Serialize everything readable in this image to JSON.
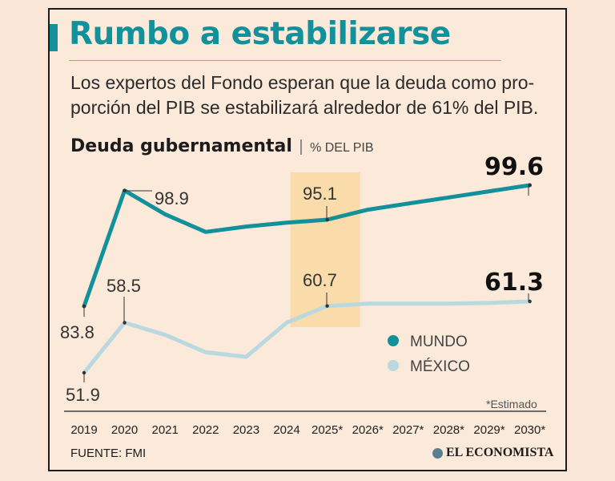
{
  "header": {
    "title": "Rumbo a estabilizarse",
    "subtitle_line1": "Los expertos del Fondo esperan que la deuda como pro-",
    "subtitle_line2": "porción del PIB se estabilizará alrededor de 61% del PIB."
  },
  "chart_heading": {
    "title": "Deuda gubernamental",
    "separator": "|",
    "unit": "% DEL PIB"
  },
  "footer": {
    "note": "*Estimado",
    "source": "FUENTE: FMI",
    "logo_text": "EL ECONOMISTA"
  },
  "colors": {
    "mundo": "#13919b",
    "mexico": "#b9d9df",
    "highlight": "#f9dcaa",
    "accent": "#13919b"
  },
  "chart_data": {
    "type": "line",
    "title": "Deuda gubernamental",
    "ylabel": "% DEL PIB",
    "categories": [
      "2019",
      "2020",
      "2021",
      "2022",
      "2023",
      "2024",
      "2025*",
      "2026*",
      "2027*",
      "2028*",
      "2029*",
      "2030*"
    ],
    "highlight_category": "2025*",
    "series": [
      {
        "name": "MUNDO",
        "color": "#13919b",
        "values": [
          83.8,
          98.9,
          95.8,
          93.5,
          94.2,
          94.7,
          95.1,
          96.4,
          97.2,
          98.0,
          98.8,
          99.6
        ],
        "labels": {
          "0": "83.8",
          "1": "98.9",
          "6": "95.1",
          "11": "99.6"
        }
      },
      {
        "name": "MÉXICO",
        "color": "#b9d9df",
        "values": [
          51.9,
          58.5,
          56.9,
          54.6,
          54.0,
          58.5,
          60.7,
          61.0,
          61.0,
          61.0,
          61.1,
          61.3
        ],
        "labels": {
          "0": "51.9",
          "1": "58.5",
          "6": "60.7",
          "11": "61.3"
        }
      }
    ],
    "legend": [
      "MUNDO",
      "MÉXICO"
    ],
    "legend_position": "right"
  }
}
